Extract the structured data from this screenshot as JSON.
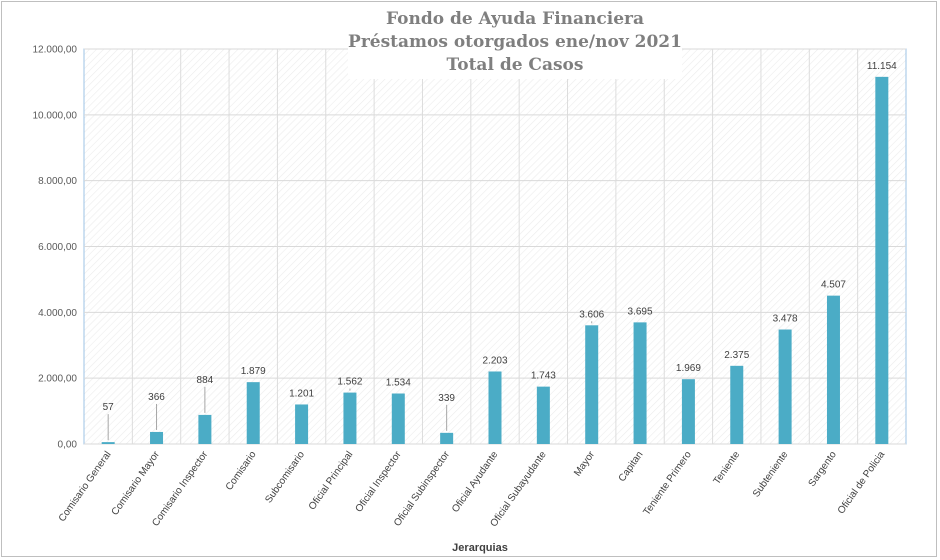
{
  "chart_data": {
    "type": "bar",
    "title": [
      "Fondo de Ayuda Financiera",
      "Préstamos otorgados ene/nov 2021",
      "Total de Casos"
    ],
    "xlabel": "Jerarquias",
    "ylabel": "",
    "ylim": [
      0,
      12000
    ],
    "yticks": [
      0,
      2000,
      4000,
      6000,
      8000,
      10000,
      12000
    ],
    "ytick_labels": [
      "0,00",
      "2.000,00",
      "4.000,00",
      "6.000,00",
      "8.000,00",
      "10.000,00",
      "12.000,00"
    ],
    "grid": true,
    "categories": [
      "Comisario General",
      "Comisario Mayor",
      "Comisario Inspector",
      "Comisario",
      "Subcomisario",
      "Oficial Principal",
      "Oficial Inspector",
      "Oficial Subinspector",
      "Oficial Ayudante",
      "Oficial Subayudante",
      "Mayor",
      "Capitan",
      "Teniente Primero",
      "Teniente",
      "Subteniente",
      "Sargento",
      "Oficial de Policia"
    ],
    "values": [
      57,
      366,
      884,
      1879,
      1201,
      1562,
      1534,
      339,
      2203,
      1743,
      3606,
      3695,
      1969,
      2375,
      3478,
      4507,
      11154
    ],
    "value_labels": [
      "57",
      "366",
      "884",
      "1.879",
      "1.201",
      "1.562",
      "1.534",
      "339",
      "2.203",
      "1.743",
      "3.606",
      "3.695",
      "1.969",
      "2.375",
      "3.478",
      "4.507",
      "11.154"
    ],
    "bar_color": "#4bacc6"
  }
}
